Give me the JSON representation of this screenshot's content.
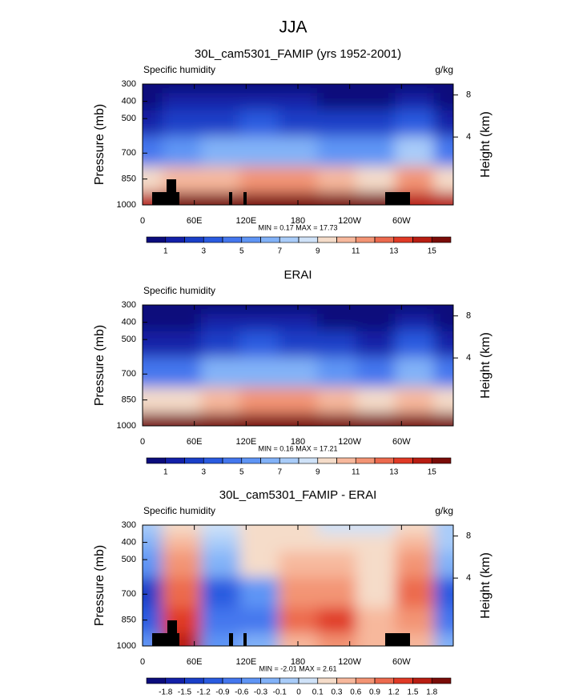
{
  "title": "JJA",
  "chart_data": [
    {
      "type": "contour",
      "title": "30L_cam5301_FAMIP (yrs 1952-2001)",
      "left_label": "Specific humidity",
      "right_label": "g/kg",
      "ylabel": "Pressure (mb)",
      "y2label": "Height (km)",
      "stats": "MIN =  0.17  MAX =  17.73",
      "x": [
        0,
        45,
        90,
        135,
        180,
        225,
        270,
        315,
        360
      ],
      "pressure": [
        1000,
        850,
        700,
        500,
        400,
        300
      ],
      "values": [
        [
          14,
          15,
          16,
          17,
          17,
          16,
          15,
          14,
          14
        ],
        [
          9,
          10,
          10,
          11,
          11,
          10,
          9,
          11,
          9
        ],
        [
          4.5,
          5.5,
          6,
          6.5,
          6,
          5,
          5,
          7,
          4.5
        ],
        [
          1.5,
          2,
          2.5,
          3,
          2.5,
          2,
          2,
          3,
          1.5
        ],
        [
          0.8,
          1,
          1.2,
          1.5,
          1.2,
          0.9,
          0.9,
          1.5,
          0.8
        ],
        [
          0.3,
          0.4,
          0.5,
          0.6,
          0.5,
          0.4,
          0.4,
          0.6,
          0.3
        ]
      ],
      "xlim": [
        0,
        360
      ],
      "xticks": [
        0,
        {
          "value": 60,
          "label": "60E"
        },
        {
          "value": 120,
          "label": "120E"
        },
        180,
        {
          "value": 240,
          "label": "120W"
        },
        {
          "value": 300,
          "label": "60W"
        }
      ],
      "ylim": [
        1000,
        300
      ],
      "yticks": [
        300,
        400,
        500,
        700,
        850,
        1000
      ],
      "y2ticks": [
        4,
        8
      ],
      "colorbar": {
        "levels": [
          1,
          2,
          3,
          4,
          5,
          6,
          7,
          8,
          9,
          10,
          11,
          12,
          13,
          14,
          15
        ],
        "labels": [
          1,
          3,
          5,
          7,
          9,
          11,
          13,
          15
        ],
        "colors": [
          "#0b0c7c",
          "#1320a8",
          "#1a3fc8",
          "#2a5be0",
          "#4477ee",
          "#5f95f5",
          "#82b2f8",
          "#a9ccf9",
          "#cfe2f8",
          "#f5dcc9",
          "#f7b89c",
          "#f39474",
          "#ec6a4e",
          "#e03a26",
          "#b81d12",
          "#7a0c08"
        ]
      }
    },
    {
      "type": "contour",
      "title": "ERAI",
      "left_label": "Specific humidity",
      "ylabel": "Pressure (mb)",
      "y2label": "Height (km)",
      "stats": "MIN =  0.16  MAX =  17.21",
      "x": [
        0,
        45,
        90,
        135,
        180,
        225,
        270,
        315,
        360
      ],
      "pressure": [
        1000,
        850,
        700,
        500,
        400,
        300
      ],
      "values": [
        [
          15,
          16,
          16,
          17,
          17,
          16,
          15,
          15,
          15
        ],
        [
          9,
          9,
          10,
          11,
          11,
          10,
          9,
          10,
          9
        ],
        [
          4,
          4.5,
          6,
          6.5,
          6,
          5,
          4.5,
          6.5,
          4
        ],
        [
          1.2,
          1.5,
          2.5,
          3,
          2.5,
          2,
          1.8,
          3,
          1.2
        ],
        [
          0.6,
          0.8,
          1.2,
          1.5,
          1.2,
          0.9,
          0.8,
          1.4,
          0.6
        ],
        [
          0.3,
          0.3,
          0.5,
          0.6,
          0.5,
          0.4,
          0.3,
          0.6,
          0.3
        ]
      ],
      "xlim": [
        0,
        360
      ],
      "xticks": [
        0,
        {
          "value": 60,
          "label": "60E"
        },
        {
          "value": 120,
          "label": "120E"
        },
        180,
        {
          "value": 240,
          "label": "120W"
        },
        {
          "value": 300,
          "label": "60W"
        }
      ],
      "ylim": [
        1000,
        300
      ],
      "yticks": [
        300,
        400,
        500,
        700,
        850,
        1000
      ],
      "y2ticks": [
        4,
        8
      ],
      "colorbar": {
        "levels": [
          1,
          2,
          3,
          4,
          5,
          6,
          7,
          8,
          9,
          10,
          11,
          12,
          13,
          14,
          15
        ],
        "labels": [
          1,
          3,
          5,
          7,
          9,
          11,
          13,
          15
        ],
        "colors": [
          "#0b0c7c",
          "#1320a8",
          "#1a3fc8",
          "#2a5be0",
          "#4477ee",
          "#5f95f5",
          "#82b2f8",
          "#a9ccf9",
          "#cfe2f8",
          "#f5dcc9",
          "#f7b89c",
          "#f39474",
          "#ec6a4e",
          "#e03a26",
          "#b81d12",
          "#7a0c08"
        ]
      }
    },
    {
      "type": "contour",
      "title": "30L_cam5301_FAMIP - ERAI",
      "left_label": "Specific humidity",
      "right_label": "g/kg",
      "ylabel": "Pressure (mb)",
      "y2label": "Height (km)",
      "stats": "MIN = -2.01  MAX =  2.61",
      "x": [
        0,
        45,
        90,
        135,
        180,
        225,
        270,
        315,
        360
      ],
      "pressure": [
        1000,
        850,
        700,
        500,
        400,
        300
      ],
      "values": [
        [
          -0.5,
          1.5,
          -0.6,
          -0.3,
          0.3,
          0.6,
          0.3,
          0.5,
          -0.3
        ],
        [
          -1.2,
          1.2,
          -0.9,
          -0.9,
          0.9,
          1.2,
          0.3,
          0.6,
          -0.9
        ],
        [
          -1.5,
          0.9,
          -1.2,
          -0.6,
          0.6,
          0.6,
          0.1,
          0.9,
          -1.2
        ],
        [
          -0.6,
          0.6,
          -0.3,
          0.1,
          0.3,
          0.3,
          0.1,
          0.6,
          -0.3
        ],
        [
          -0.3,
          0.3,
          -0.1,
          0.1,
          0.1,
          0.1,
          0.1,
          0.3,
          -0.1
        ],
        [
          -0.1,
          0.1,
          0,
          0.1,
          0.1,
          0,
          0,
          0.1,
          -0.1
        ]
      ],
      "xlim": [
        0,
        360
      ],
      "xticks": [
        0,
        {
          "value": 60,
          "label": "60E"
        },
        {
          "value": 120,
          "label": "120E"
        },
        180,
        {
          "value": 240,
          "label": "120W"
        },
        {
          "value": 300,
          "label": "60W"
        }
      ],
      "ylim": [
        1000,
        300
      ],
      "yticks": [
        300,
        400,
        500,
        700,
        850,
        1000
      ],
      "y2ticks": [
        4,
        8
      ],
      "colorbar": {
        "levels": [
          -1.8,
          -1.5,
          -1.2,
          -0.9,
          -0.6,
          -0.3,
          -0.1,
          0,
          0.1,
          0.3,
          0.6,
          0.9,
          1.2,
          1.5,
          1.8
        ],
        "labels": [
          -1.8,
          -1.5,
          -1.2,
          -0.9,
          -0.6,
          -0.3,
          -0.1,
          0,
          0.1,
          0.3,
          0.6,
          0.9,
          1.2,
          1.5,
          1.8
        ],
        "colors": [
          "#0b0c7c",
          "#1320a8",
          "#1a3fc8",
          "#2a5be0",
          "#4477ee",
          "#5f95f5",
          "#82b2f8",
          "#a9ccf9",
          "#cfe2f8",
          "#f5dcc9",
          "#f7b89c",
          "#f39474",
          "#ec6a4e",
          "#e03a26",
          "#b81d12",
          "#7a0c08"
        ]
      }
    }
  ]
}
